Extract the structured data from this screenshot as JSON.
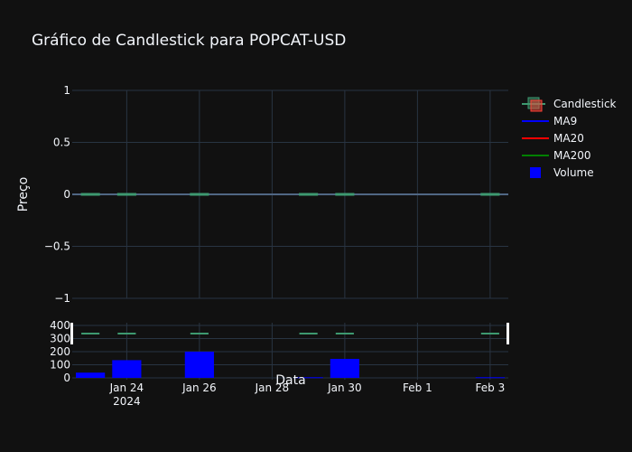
{
  "chart_data": {
    "type": "candlestick",
    "title": "Gráfico de Candlestick para POPCAT-USD",
    "xlabel": "Data",
    "ylabel": "Preço",
    "x_ticks": [
      "Jan 24",
      "Jan 26",
      "Jan 28",
      "Jan 30",
      "Feb 1",
      "Feb 3"
    ],
    "x_year_label": "2024",
    "x_range": [
      "2024-01-22 12:00",
      "2024-02-03 12:00"
    ],
    "price_axis": {
      "ticks": [
        1,
        0.5,
        0,
        -0.5,
        -1
      ],
      "tick_labels": [
        "1",
        "0.5",
        "0",
        "−0.5",
        "−1"
      ],
      "range": [
        -1,
        1
      ]
    },
    "volume_axis": {
      "ticks": [
        400,
        300,
        200,
        100,
        0
      ],
      "tick_labels": [
        "400",
        "300",
        "200",
        "100",
        "0"
      ],
      "range": [
        0,
        400
      ]
    },
    "candles": [
      {
        "date": "2024-01-23",
        "open": 0,
        "high": 0,
        "low": 0,
        "close": 0
      },
      {
        "date": "2024-01-24",
        "open": 0,
        "high": 0,
        "low": 0,
        "close": 0
      },
      {
        "date": "2024-01-26",
        "open": 0,
        "high": 0,
        "low": 0,
        "close": 0
      },
      {
        "date": "2024-01-29",
        "open": 0,
        "high": 0,
        "low": 0,
        "close": 0
      },
      {
        "date": "2024-01-30",
        "open": 0,
        "high": 0,
        "low": 0,
        "close": 0
      },
      {
        "date": "2024-02-03",
        "open": 0,
        "high": 0,
        "low": 0,
        "close": 0
      }
    ],
    "volume": [
      {
        "date": "2024-01-23",
        "value": 40
      },
      {
        "date": "2024-01-24",
        "value": 135
      },
      {
        "date": "2024-01-26",
        "value": 200
      },
      {
        "date": "2024-01-29",
        "value": 5
      },
      {
        "date": "2024-01-30",
        "value": 145
      },
      {
        "date": "2024-02-03",
        "value": 5
      }
    ],
    "legend": {
      "placement": "top-right",
      "items": [
        {
          "name": "Candlestick",
          "symbol": "candle"
        },
        {
          "name": "MA9",
          "symbol": "line",
          "color": "#0000ff"
        },
        {
          "name": "MA20",
          "symbol": "line",
          "color": "#ff0000"
        },
        {
          "name": "MA200",
          "symbol": "line",
          "color": "#008000"
        },
        {
          "name": "Volume",
          "symbol": "square",
          "color": "#0000ff"
        }
      ]
    },
    "colors": {
      "background": "#111111",
      "grid": "#283442",
      "zeroline": "#506784",
      "increasing": "#3D9970",
      "decreasing": "#FF4136",
      "volume": "#0000ff",
      "text": "#f2f5fa"
    },
    "grid": true
  }
}
